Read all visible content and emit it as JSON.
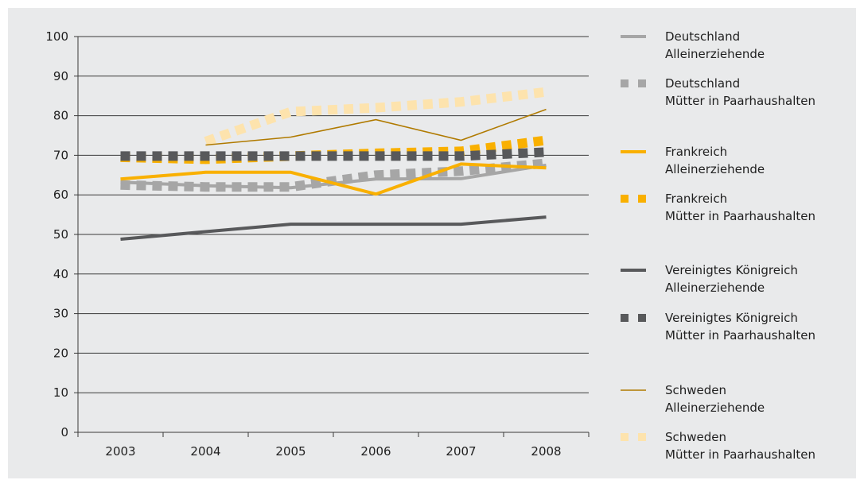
{
  "chart_data": {
    "type": "line",
    "title": "",
    "xlabel": "",
    "ylabel": "",
    "x": [
      "2003",
      "2004",
      "2005",
      "2006",
      "2007",
      "2008"
    ],
    "ylim": [
      0,
      100
    ],
    "yticks": [
      "0",
      "10",
      "20",
      "30",
      "40",
      "50",
      "60",
      "70",
      "80",
      "90",
      "100"
    ],
    "grid": "horizontal",
    "legend_position": "right",
    "series": [
      {
        "name": [
          "Deutschland",
          "Alleinerziehende"
        ],
        "color": "#a6a6a6",
        "style": "solid-thick",
        "values": [
          63.2,
          62.3,
          61.8,
          64.0,
          64.1,
          67.5
        ]
      },
      {
        "name": [
          "Deutschland",
          "Mütter in Paarhaushalten"
        ],
        "color": "#a6a6a6",
        "style": "dotted",
        "values": [
          62.5,
          62.0,
          62.0,
          65.0,
          66.0,
          68.0
        ]
      },
      {
        "name": [
          "Frankreich",
          "Alleinerziehende"
        ],
        "color": "#f9b000",
        "style": "solid-thick",
        "values": [
          64.0,
          65.7,
          65.7,
          60.2,
          67.8,
          66.8
        ]
      },
      {
        "name": [
          "Frankreich",
          "Mütter in Paarhaushalten"
        ],
        "color": "#f9b000",
        "style": "dotted",
        "values": [
          69.5,
          69.0,
          69.8,
          70.5,
          71.0,
          73.8
        ]
      },
      {
        "name": [
          "Vereinigtes Königreich",
          "Alleinerziehende"
        ],
        "color": "#58595b",
        "style": "solid-thick",
        "values": [
          48.8,
          50.7,
          52.6,
          52.6,
          52.6,
          54.4
        ]
      },
      {
        "name": [
          "Vereinigtes Königreich",
          "Mütter in Paarhaushalten"
        ],
        "color": "#58595b",
        "style": "dotted",
        "values": [
          69.8,
          69.8,
          69.8,
          69.8,
          69.8,
          70.8
        ]
      },
      {
        "name": [
          "Schweden",
          "Alleinerziehende"
        ],
        "color": "#b07a00",
        "style": "solid-thin",
        "values": [
          null,
          72.6,
          74.6,
          79.0,
          73.8,
          81.6
        ]
      },
      {
        "name": [
          "Schweden",
          "Mütter in Paarhaushalten"
        ],
        "color": "#fde3ad",
        "style": "dotted",
        "values": [
          null,
          73.5,
          81.0,
          82.0,
          83.5,
          86.0
        ]
      }
    ]
  }
}
